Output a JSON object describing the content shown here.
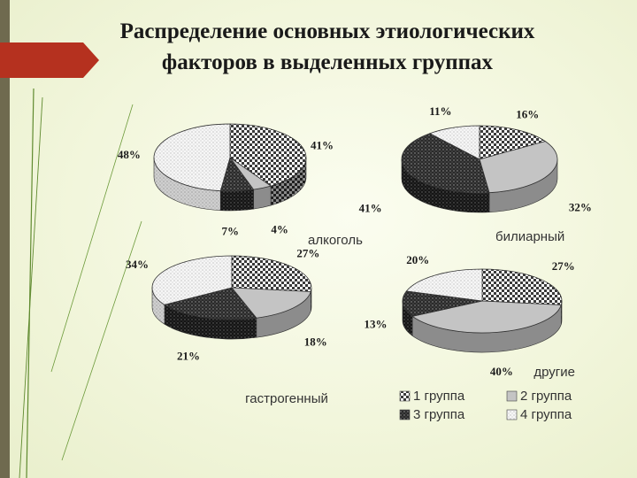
{
  "slide": {
    "title_line1": "Распределение основных этиологических",
    "title_line2": "факторов в выделенных группах",
    "accent_color": "#b5311f",
    "stripe_color": "#6f6a4f"
  },
  "chart_data": {
    "type": "pie",
    "legend": {
      "placement": "bottom-right",
      "entries": [
        "1 группа",
        "2 группа",
        "3 группа",
        "4 группа"
      ]
    },
    "series_styles": [
      {
        "entry": "1 группа",
        "pattern": "checker",
        "color": "#3a3a3a"
      },
      {
        "entry": "2 группа",
        "pattern": "solid",
        "color": "#c2c2c2"
      },
      {
        "entry": "3 группа",
        "pattern": "dark-dots",
        "color": "#2a2a2a"
      },
      {
        "entry": "4 группа",
        "pattern": "light-dots",
        "color": "#f2f2f2"
      }
    ],
    "charts": [
      {
        "name": "алкоголь",
        "slices": [
          {
            "group": "1 группа",
            "value": 41,
            "label": "41%"
          },
          {
            "group": "2 группа",
            "value": 4,
            "label": "4%"
          },
          {
            "group": "3 группа",
            "value": 7,
            "label": "7%"
          },
          {
            "group": "4 группа",
            "value": 48,
            "label": "48%"
          }
        ]
      },
      {
        "name": "билиарный",
        "slices": [
          {
            "group": "1 группа",
            "value": 16,
            "label": "16%"
          },
          {
            "group": "2 группа",
            "value": 32,
            "label": "32%"
          },
          {
            "group": "3 группа",
            "value": 41,
            "label": "41%"
          },
          {
            "group": "4 группа",
            "value": 11,
            "label": "11%"
          }
        ]
      },
      {
        "name": "гастрогенный",
        "slices": [
          {
            "group": "1 группа",
            "value": 27,
            "label": "27%"
          },
          {
            "group": "2 группа",
            "value": 18,
            "label": "18%"
          },
          {
            "group": "3 группа",
            "value": 21,
            "label": "21%"
          },
          {
            "group": "4 группа",
            "value": 34,
            "label": "34%"
          }
        ]
      },
      {
        "name": "другие",
        "slices": [
          {
            "group": "1 группа",
            "value": 27,
            "label": "27%"
          },
          {
            "group": "2 группа",
            "value": 40,
            "label": "40%"
          },
          {
            "group": "3 группа",
            "value": 13,
            "label": "13%"
          },
          {
            "group": "4 группа",
            "value": 20,
            "label": "20%"
          }
        ]
      }
    ]
  }
}
